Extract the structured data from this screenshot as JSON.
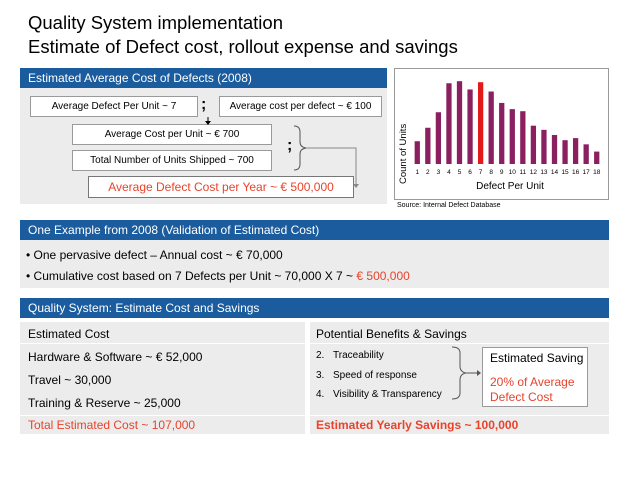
{
  "title": {
    "line1": "Quality System implementation",
    "line2": "Estimate of Defect cost, rollout expense and savings"
  },
  "section1": {
    "header": "Estimated Average Cost of Defects (2008)",
    "box_defect_per_unit": "Average Defect Per Unit ~ 7",
    "semicolon1": ";",
    "box_cost_per_defect": "Average cost per defect ~ € 100",
    "box_cost_per_unit": "Average Cost per Unit ~ € 700",
    "semicolon2": ";",
    "box_units_shipped": "Total Number of Units Shipped ~ 700",
    "box_cost_per_year": "Average Defect Cost per Year ~ € 500,000",
    "source": "Source: Internal Defect Database"
  },
  "chart_data": {
    "type": "bar",
    "categories": [
      "1",
      "2",
      "3",
      "4",
      "5",
      "6",
      "7",
      "8",
      "9",
      "10",
      "11",
      "12",
      "13",
      "14",
      "15",
      "16",
      "17",
      "18"
    ],
    "values": [
      22,
      35,
      50,
      78,
      80,
      72,
      79,
      70,
      59,
      53,
      51,
      37,
      33,
      28,
      23,
      25,
      19,
      12
    ],
    "highlight_index": 6,
    "xlabel": "Defect Per Unit",
    "ylabel": "Count of Units",
    "ylim": [
      0,
      85
    ],
    "colors": {
      "bar": "#8b2060",
      "highlight": "#e21a1a"
    }
  },
  "section2": {
    "header": "One Example from 2008 (Validation of Estimated Cost)",
    "bullet1": "One pervasive defect – Annual cost ~ € 70,000",
    "bullet2_prefix": "Cumulative cost based on 7 Defects per Unit ~ 70,000 X 7 ~ ",
    "bullet2_highlight": "€ 500,000"
  },
  "section3": {
    "header": "Quality System: Estimate Cost and Savings",
    "left_header": "Estimated Cost",
    "left_items": [
      "Hardware & Software ~ € 52,000",
      "Travel ~ 30,000",
      "Training & Reserve ~ 25,000"
    ],
    "left_total": "Total Estimated Cost ~ 107,000",
    "right_header": "Potential Benefits & Savings",
    "benefits": [
      {
        "num": "2.",
        "label": "Traceability"
      },
      {
        "num": "3.",
        "label": "Speed of response"
      },
      {
        "num": "4.",
        "label": "Visibility & Transparency"
      }
    ],
    "saving_title": "Estimated Saving",
    "saving_line1": "20% of Average",
    "saving_line2": "Defect Cost",
    "right_total": "Estimated Yearly Savings ~ 100,000"
  },
  "colors": {
    "header_blue": "#1a5c9e",
    "accent_red": "#e8432b",
    "panel_gray": "#ececec"
  }
}
